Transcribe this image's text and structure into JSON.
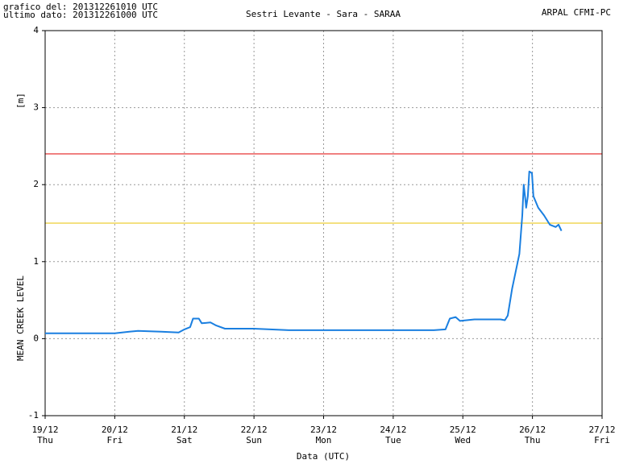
{
  "chart_data": {
    "type": "line",
    "title": "Sestri Levante - Sara - SARAA",
    "header_left": [
      "grafico del: 201312261010 UTC",
      "ultimo dato: 201312261000 UTC"
    ],
    "header_right": "ARPAL CFMI-PC",
    "y_unit_label": "[m]",
    "y_label": "MEAN CREEK LEVEL",
    "x_label": "Data (UTC)",
    "ylim": [
      -1,
      4
    ],
    "yticks": [
      -1,
      0,
      1,
      2,
      3,
      4
    ],
    "xlim": [
      "2013-12-19T00:00",
      "2013-12-27T00:00"
    ],
    "xticks": [
      {
        "value": "2013-12-19T00:00",
        "label": "19/12",
        "weekday": "Thu"
      },
      {
        "value": "2013-12-20T00:00",
        "label": "20/12",
        "weekday": "Fri"
      },
      {
        "value": "2013-12-21T00:00",
        "label": "21/12",
        "weekday": "Sat"
      },
      {
        "value": "2013-12-22T00:00",
        "label": "22/12",
        "weekday": "Sun"
      },
      {
        "value": "2013-12-23T00:00",
        "label": "23/12",
        "weekday": "Mon"
      },
      {
        "value": "2013-12-24T00:00",
        "label": "24/12",
        "weekday": "Tue"
      },
      {
        "value": "2013-12-25T00:00",
        "label": "25/12",
        "weekday": "Wed"
      },
      {
        "value": "2013-12-26T00:00",
        "label": "26/12",
        "weekday": "Thu"
      },
      {
        "value": "2013-12-27T00:00",
        "label": "27/12",
        "weekday": "Fri"
      }
    ],
    "grid": true,
    "thresholds": [
      {
        "value": 2.4,
        "color": "#e00000"
      },
      {
        "value": 1.5,
        "color": "#e8c000"
      }
    ],
    "series": [
      {
        "color": "#1a7fe0",
        "x": [
          "2013-12-19T00:00",
          "2013-12-19T12:00",
          "2013-12-20T00:00",
          "2013-12-20T05:00",
          "2013-12-20T08:00",
          "2013-12-20T16:00",
          "2013-12-20T22:00",
          "2013-12-21T00:00",
          "2013-12-21T02:00",
          "2013-12-21T03:00",
          "2013-12-21T05:00",
          "2013-12-21T06:00",
          "2013-12-21T09:00",
          "2013-12-21T11:00",
          "2013-12-21T14:00",
          "2013-12-22T00:00",
          "2013-12-22T12:00",
          "2013-12-23T00:00",
          "2013-12-24T00:00",
          "2013-12-24T14:00",
          "2013-12-24T18:00",
          "2013-12-24T19:30",
          "2013-12-24T21:30",
          "2013-12-24T23:00",
          "2013-12-25T04:00",
          "2013-12-25T13:00",
          "2013-12-25T14:30",
          "2013-12-25T15:30",
          "2013-12-25T17:00",
          "2013-12-25T19:30",
          "2013-12-25T20:30",
          "2013-12-25T21:00",
          "2013-12-25T21:35",
          "2013-12-25T21:50",
          "2013-12-25T22:25",
          "2013-12-25T22:55",
          "2013-12-25T23:50",
          "2013-12-26T00:20",
          "2013-12-26T02:00",
          "2013-12-26T04:00",
          "2013-12-26T06:00",
          "2013-12-26T08:00",
          "2013-12-26T09:00",
          "2013-12-26T10:00"
        ],
        "values": [
          0.07,
          0.07,
          0.07,
          0.09,
          0.1,
          0.09,
          0.08,
          0.12,
          0.15,
          0.26,
          0.26,
          0.2,
          0.21,
          0.17,
          0.13,
          0.13,
          0.11,
          0.11,
          0.11,
          0.11,
          0.12,
          0.26,
          0.28,
          0.23,
          0.25,
          0.25,
          0.24,
          0.3,
          0.65,
          1.1,
          1.6,
          2.0,
          1.8,
          1.7,
          1.85,
          2.17,
          2.15,
          1.85,
          1.7,
          1.6,
          1.48,
          1.45,
          1.48,
          1.4
        ]
      }
    ]
  }
}
